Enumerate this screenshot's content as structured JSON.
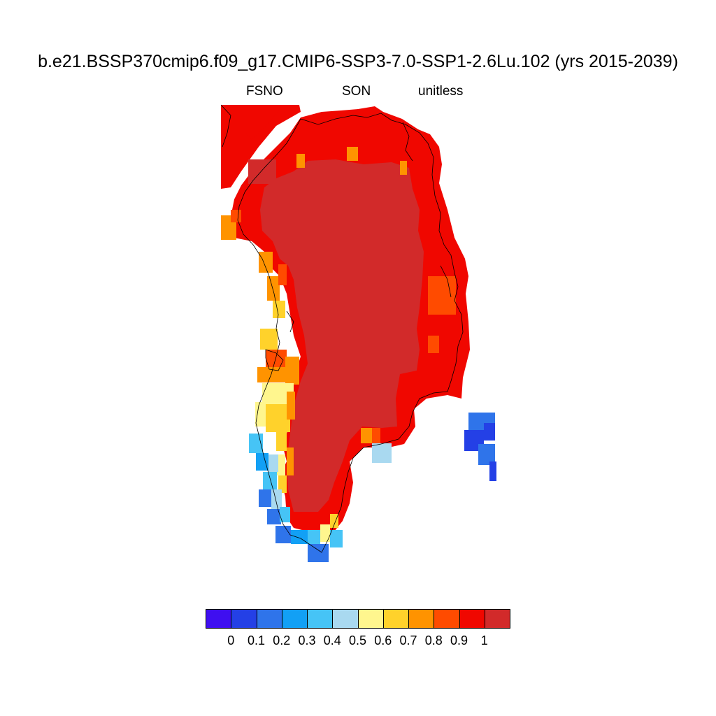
{
  "title": "b.e21.BSSP370cmip6.f09_g17.CMIP6-SSP3-7.0-SSP1-2.6Lu.102 (yrs 2015-2039)",
  "subtitle_left": "FSNO",
  "subtitle_center": "SON",
  "subtitle_right": "unitless",
  "colorbar": {
    "colors": [
      "#3f0ff0",
      "#2440e6",
      "#2f74ea",
      "#12a0f5",
      "#46c4f6",
      "#a9d9f0",
      "#fff68e",
      "#ffd22b",
      "#ff9300",
      "#ff4b00",
      "#f00700",
      "#d22a2a"
    ],
    "labels": [
      "0",
      "0.1",
      "0.2",
      "0.3",
      "0.4",
      "0.5",
      "0.6",
      "0.7",
      "0.8",
      "0.9",
      "1"
    ]
  }
}
